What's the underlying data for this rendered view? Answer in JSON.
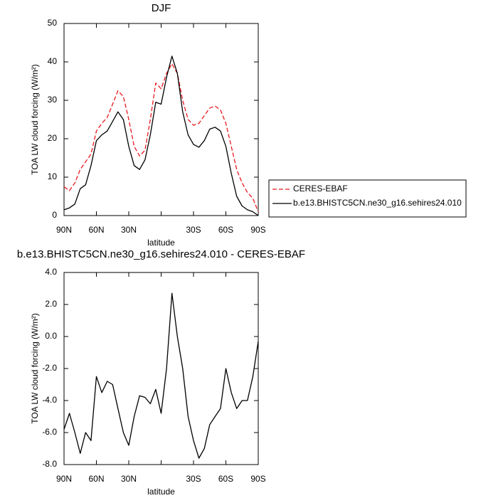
{
  "chart_data": [
    {
      "type": "line",
      "title": "DJF",
      "x": [
        90,
        85,
        80,
        75,
        70,
        65,
        60,
        55,
        50,
        45,
        40,
        35,
        30,
        25,
        20,
        15,
        10,
        5,
        0,
        -5,
        -10,
        -15,
        -20,
        -25,
        -30,
        -35,
        -40,
        -45,
        -50,
        -55,
        -60,
        -65,
        -70,
        -75,
        -80,
        -85,
        -90
      ],
      "xlim": [
        90,
        -90
      ],
      "xticks": [
        {
          "value": 90,
          "label": "90N"
        },
        {
          "value": 60,
          "label": "60N"
        },
        {
          "value": 30,
          "label": "30N"
        },
        {
          "value": 0,
          "label": null
        },
        {
          "value": -30,
          "label": "30S"
        },
        {
          "value": -60,
          "label": "60S"
        },
        {
          "value": -90,
          "label": "90S"
        }
      ],
      "ylim": [
        0,
        50
      ],
      "yticks": [
        0,
        10,
        20,
        30,
        40,
        50
      ],
      "xlabel": "latitude",
      "ylabel": "TOA LW cloud forcing (W/m²)",
      "legend": "outside-right",
      "series": [
        {
          "name": "CERES-EBAF",
          "color": "#e8191f",
          "dashed": true,
          "values": [
            7.5,
            6.5,
            8.5,
            12,
            14,
            16,
            22,
            24,
            25.5,
            29,
            32.5,
            31,
            25,
            18,
            15.5,
            17,
            25,
            34.5,
            33,
            37,
            39.5,
            37,
            30,
            25,
            23.5,
            24,
            26,
            28,
            28.5,
            27.5,
            24,
            18,
            12,
            8.5,
            6,
            4.5,
            1
          ]
        },
        {
          "name": "b.e13.BHISTC5CN.ne30_g16.sehires24.010",
          "color": "#000000",
          "dashed": false,
          "values": [
            1.5,
            2,
            3,
            7,
            8,
            13,
            19.5,
            21,
            22,
            24.5,
            27,
            25,
            18,
            13,
            12,
            14.5,
            21,
            29.5,
            29,
            36,
            41.5,
            37,
            27,
            21,
            18.5,
            17.8,
            19.5,
            22.5,
            23,
            22,
            18,
            11,
            5,
            2.5,
            1.5,
            1,
            0
          ]
        }
      ]
    },
    {
      "type": "line",
      "title": "b.e13.BHISTC5CN.ne30_g16.sehires24.010 - CERES-EBAF",
      "x": [
        90,
        85,
        80,
        75,
        70,
        65,
        60,
        55,
        50,
        45,
        40,
        35,
        30,
        25,
        20,
        15,
        10,
        5,
        0,
        -5,
        -10,
        -15,
        -20,
        -25,
        -30,
        -35,
        -40,
        -45,
        -50,
        -55,
        -60,
        -65,
        -70,
        -75,
        -80,
        -85,
        -90
      ],
      "xlim": [
        90,
        -90
      ],
      "xticks": [
        {
          "value": 90,
          "label": "90N"
        },
        {
          "value": 60,
          "label": "60N"
        },
        {
          "value": 30,
          "label": "30N"
        },
        {
          "value": 0,
          "label": null
        },
        {
          "value": -30,
          "label": "30S"
        },
        {
          "value": -60,
          "label": "60S"
        },
        {
          "value": -90,
          "label": "90S"
        }
      ],
      "ylim": [
        -8,
        4
      ],
      "yticks": [
        {
          "value": 4,
          "label": "4.0"
        },
        {
          "value": 2,
          "label": "2.0"
        },
        {
          "value": 0,
          "label": "0.0"
        },
        {
          "value": -2,
          "label": "-2.0"
        },
        {
          "value": -4,
          "label": "-4.0"
        },
        {
          "value": -6,
          "label": "-6.0"
        },
        {
          "value": -8,
          "label": "-8.0"
        }
      ],
      "xlabel": "latitude",
      "ylabel": "TOA LW cloud forcing (W/m²)",
      "color": "#000000",
      "values": [
        -5.8,
        -4.8,
        -6.0,
        -7.3,
        -6.0,
        -6.5,
        -2.5,
        -3.5,
        -2.8,
        -3.0,
        -4.5,
        -6.0,
        -6.8,
        -5.0,
        -3.7,
        -3.8,
        -4.2,
        -3.3,
        -4.8,
        -2.0,
        2.7,
        0.0,
        -2.0,
        -5.0,
        -6.5,
        -7.6,
        -7.0,
        -5.5,
        -5.0,
        -4.5,
        -2.0,
        -3.5,
        -4.5,
        -4.0,
        -4.0,
        -2.5,
        -0.3
      ]
    }
  ]
}
